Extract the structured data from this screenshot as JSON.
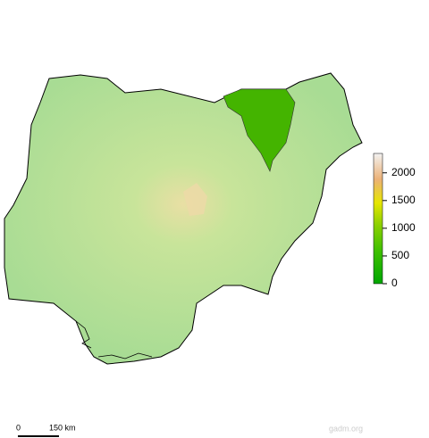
{
  "legend": {
    "lim": [
      0,
      2350
    ],
    "ticks": [
      0,
      500,
      1000,
      1500,
      2000
    ]
  },
  "scale_bar": {
    "start": "0",
    "end": "150 km"
  },
  "credit": "gadm.org"
}
